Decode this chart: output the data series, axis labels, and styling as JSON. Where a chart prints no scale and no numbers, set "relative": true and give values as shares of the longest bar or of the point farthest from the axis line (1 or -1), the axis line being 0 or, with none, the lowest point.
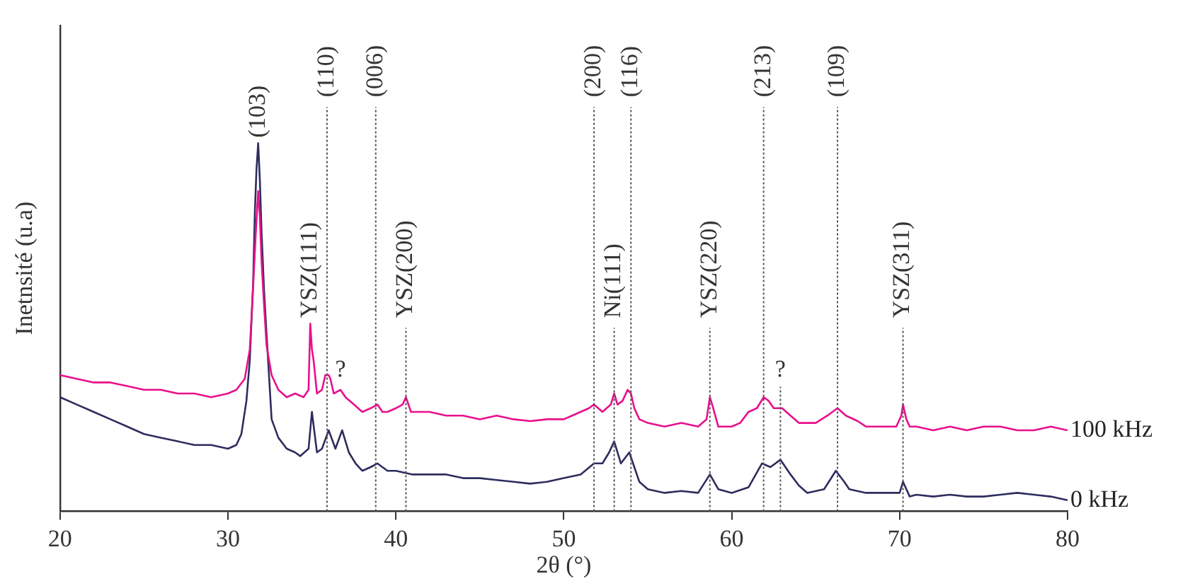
{
  "chart_data": {
    "type": "line",
    "relative": true,
    "xlabel": "2θ (°)",
    "ylabel": "Inetnsité (u.a)",
    "xlim": [
      20,
      80
    ],
    "xticks": [
      20,
      30,
      40,
      50,
      60,
      70,
      80
    ],
    "grid": false,
    "legend": false,
    "marker": "none",
    "line_style": "solid",
    "series": [
      {
        "name": "100 kHz",
        "color": "#e8108c",
        "x": [
          20,
          21,
          22,
          23,
          24,
          25,
          26,
          27,
          28,
          29,
          30,
          30.5,
          31,
          31.3,
          31.5,
          31.65,
          31.8,
          31.9,
          32,
          32.15,
          32.3,
          32.6,
          33,
          33.5,
          34,
          34.5,
          34.8,
          34.9,
          35,
          35.1,
          35.3,
          35.6,
          35.8,
          36,
          36.1,
          36.3,
          36.7,
          37,
          37.5,
          38,
          38.5,
          38.9,
          39.2,
          39.5,
          40,
          40.4,
          40.6,
          40.9,
          41.5,
          42,
          43,
          44,
          45,
          46,
          47,
          48,
          49,
          50,
          50.5,
          51,
          51.5,
          51.8,
          52.3,
          52.8,
          53,
          53.2,
          53.5,
          53.8,
          54,
          54.2,
          54.5,
          55,
          56,
          57,
          58,
          58.5,
          58.7,
          58.9,
          59.2,
          60,
          60.5,
          61,
          61.5,
          61.9,
          62.2,
          62.5,
          63,
          63.5,
          64,
          65,
          65.7,
          66.3,
          66.8,
          67.5,
          68,
          69,
          69.8,
          70.1,
          70.2,
          70.4,
          70.6,
          71,
          72,
          73,
          74,
          75,
          76,
          77,
          78,
          79,
          80
        ],
        "values": [
          0.37,
          0.36,
          0.35,
          0.35,
          0.34,
          0.33,
          0.33,
          0.32,
          0.32,
          0.31,
          0.32,
          0.33,
          0.36,
          0.44,
          0.61,
          0.75,
          0.87,
          0.8,
          0.68,
          0.56,
          0.45,
          0.37,
          0.33,
          0.31,
          0.32,
          0.31,
          0.33,
          0.51,
          0.44,
          0.41,
          0.32,
          0.33,
          0.37,
          0.37,
          0.36,
          0.32,
          0.33,
          0.31,
          0.29,
          0.27,
          0.28,
          0.29,
          0.27,
          0.27,
          0.28,
          0.29,
          0.31,
          0.27,
          0.27,
          0.27,
          0.26,
          0.26,
          0.25,
          0.26,
          0.25,
          0.245,
          0.25,
          0.25,
          0.26,
          0.27,
          0.28,
          0.29,
          0.27,
          0.29,
          0.32,
          0.29,
          0.3,
          0.33,
          0.32,
          0.28,
          0.25,
          0.24,
          0.23,
          0.24,
          0.23,
          0.25,
          0.31,
          0.28,
          0.23,
          0.23,
          0.24,
          0.27,
          0.28,
          0.31,
          0.3,
          0.28,
          0.28,
          0.26,
          0.24,
          0.24,
          0.26,
          0.28,
          0.26,
          0.245,
          0.23,
          0.23,
          0.23,
          0.26,
          0.29,
          0.25,
          0.23,
          0.23,
          0.22,
          0.23,
          0.22,
          0.23,
          0.23,
          0.22,
          0.22,
          0.23,
          0.22
        ]
      },
      {
        "name": "0 kHz",
        "color": "#2e2d5e",
        "x": [
          20,
          21,
          22,
          23,
          24,
          25,
          26,
          27,
          28,
          29,
          30,
          30.5,
          30.8,
          31.1,
          31.3,
          31.5,
          31.6,
          31.7,
          31.8,
          31.9,
          32,
          32.15,
          32.3,
          32.6,
          33,
          33.5,
          34,
          34.3,
          34.8,
          35,
          35.3,
          35.6,
          36,
          36.4,
          36.8,
          37.2,
          37.6,
          38,
          38.5,
          38.9,
          39.5,
          40,
          41,
          42,
          43,
          44,
          45,
          46,
          47,
          48,
          49,
          50,
          51,
          51.8,
          52.3,
          52.7,
          53,
          53.4,
          53.9,
          54.2,
          54.5,
          55,
          56,
          57,
          58,
          58.7,
          59.2,
          60,
          61,
          61.8,
          62.3,
          62.9,
          63.5,
          64,
          64.5,
          65.5,
          66.2,
          66.7,
          67,
          68,
          69,
          70,
          70.2,
          70.6,
          71,
          72,
          73,
          74,
          75,
          76,
          77,
          78,
          79,
          80
        ],
        "values": [
          0.31,
          0.29,
          0.27,
          0.25,
          0.23,
          0.21,
          0.2,
          0.19,
          0.18,
          0.18,
          0.17,
          0.18,
          0.21,
          0.3,
          0.41,
          0.62,
          0.81,
          0.93,
          1,
          0.9,
          0.76,
          0.6,
          0.48,
          0.25,
          0.2,
          0.17,
          0.16,
          0.15,
          0.17,
          0.27,
          0.16,
          0.17,
          0.22,
          0.17,
          0.22,
          0.16,
          0.13,
          0.11,
          0.12,
          0.13,
          0.11,
          0.11,
          0.1,
          0.1,
          0.1,
          0.09,
          0.09,
          0.085,
          0.08,
          0.075,
          0.08,
          0.09,
          0.1,
          0.13,
          0.13,
          0.16,
          0.19,
          0.13,
          0.16,
          0.12,
          0.08,
          0.06,
          0.05,
          0.055,
          0.05,
          0.1,
          0.06,
          0.05,
          0.065,
          0.13,
          0.12,
          0.14,
          0.1,
          0.07,
          0.05,
          0.06,
          0.11,
          0.08,
          0.06,
          0.05,
          0.05,
          0.05,
          0.08,
          0.04,
          0.045,
          0.04,
          0.045,
          0.04,
          0.04,
          0.045,
          0.05,
          0.045,
          0.04,
          0.03
        ]
      }
    ],
    "ref_lines": [
      {
        "axis": "x",
        "value": 35.9,
        "color": "#555555",
        "line_style": "dotted"
      },
      {
        "axis": "x",
        "value": 38.8,
        "color": "#555555",
        "line_style": "dotted"
      },
      {
        "axis": "x",
        "value": 40.6,
        "color": "#555555",
        "line_style": "dotted"
      },
      {
        "axis": "x",
        "value": 51.8,
        "color": "#555555",
        "line_style": "dotted"
      },
      {
        "axis": "x",
        "value": 53.0,
        "color": "#555555",
        "line_style": "dotted"
      },
      {
        "axis": "x",
        "value": 54.0,
        "color": "#555555",
        "line_style": "dotted"
      },
      {
        "axis": "x",
        "value": 58.7,
        "color": "#555555",
        "line_style": "dotted"
      },
      {
        "axis": "x",
        "value": 61.9,
        "color": "#555555",
        "line_style": "dotted"
      },
      {
        "axis": "x",
        "value": 62.9,
        "color": "#555555",
        "line_style": "dotted"
      },
      {
        "axis": "x",
        "value": 66.3,
        "color": "#555555",
        "line_style": "dotted"
      },
      {
        "axis": "x",
        "value": 70.2,
        "color": "#555555",
        "line_style": "dotted"
      }
    ],
    "annotations": [
      {
        "text": "(103)",
        "x": 31.8,
        "y": 1
      },
      {
        "text": "(110)",
        "x": 35.9,
        "y": 1.11
      },
      {
        "text": "(006)",
        "x": 38.8,
        "y": 1.11
      },
      {
        "text": "(200)",
        "x": 51.8,
        "y": 1.11
      },
      {
        "text": "(116)",
        "x": 54.0,
        "y": 1.11
      },
      {
        "text": "(213)",
        "x": 61.9,
        "y": 1.11
      },
      {
        "text": "(109)",
        "x": 66.3,
        "y": 1.11
      },
      {
        "text": "YSZ(111)",
        "x": 34.9,
        "y": 0.51
      },
      {
        "text": "YSZ(200)",
        "x": 40.6,
        "y": 0.51
      },
      {
        "text": "Ni(111)",
        "x": 53.0,
        "y": 0.51
      },
      {
        "text": "YSZ(220)",
        "x": 58.7,
        "y": 0.51
      },
      {
        "text": "YSZ(311)",
        "x": 70.2,
        "y": 0.51
      },
      {
        "text": "?",
        "x": 36.7,
        "y": 0.35
      },
      {
        "text": "?",
        "x": 62.9,
        "y": 0.35
      }
    ]
  }
}
